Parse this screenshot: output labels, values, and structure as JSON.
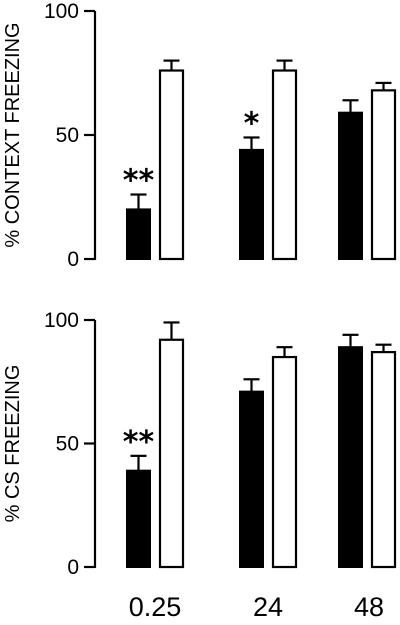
{
  "chart_data": [
    {
      "type": "bar",
      "ylabel": "% CONTEXT FREEZING",
      "ylim": [
        0,
        100
      ],
      "yticks": [
        "0",
        "50",
        "100"
      ],
      "categories": [
        "0.25",
        "24",
        "48"
      ],
      "series": [
        {
          "style": "filled",
          "values": [
            20,
            44,
            59
          ],
          "errors": [
            6,
            5,
            5
          ],
          "significance": [
            "**",
            "*",
            ""
          ]
        },
        {
          "style": "open",
          "values": [
            76,
            76,
            68
          ],
          "errors": [
            4,
            4,
            3
          ],
          "significance": [
            "",
            "",
            ""
          ]
        }
      ]
    },
    {
      "type": "bar",
      "ylabel": "% CS FREEZING",
      "ylim": [
        0,
        100
      ],
      "yticks": [
        "0",
        "50",
        "100"
      ],
      "categories": [
        "0.25",
        "24",
        "48"
      ],
      "series": [
        {
          "style": "filled",
          "values": [
            39,
            71,
            89
          ],
          "errors": [
            6,
            5,
            5
          ],
          "significance": [
            "**",
            "",
            ""
          ]
        },
        {
          "style": "open",
          "values": [
            92,
            85,
            87
          ],
          "errors": [
            7,
            4,
            3
          ],
          "significance": [
            "",
            "",
            ""
          ]
        }
      ]
    }
  ],
  "x_category_labels": [
    "0.25",
    "24",
    "48"
  ]
}
